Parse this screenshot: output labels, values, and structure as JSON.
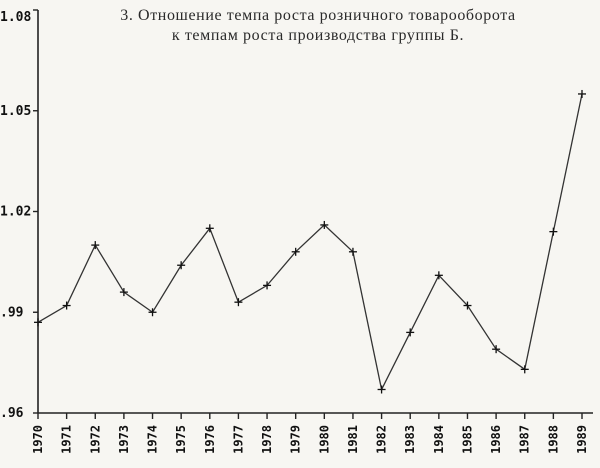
{
  "chart_data": {
    "type": "line",
    "title": "3. Отношение темпа роста розничного товарооборота",
    "subtitle": "к темпам роста производства группы Б.",
    "xlabel": "",
    "ylabel": "",
    "categories": [
      "1970",
      "1971",
      "1972",
      "1973",
      "1974",
      "1975",
      "1976",
      "1977",
      "1978",
      "1979",
      "1980",
      "1981",
      "1982",
      "1983",
      "1984",
      "1985",
      "1986",
      "1987",
      "1988",
      "1989"
    ],
    "series": [
      {
        "values": [
          0.987,
          0.992,
          1.01,
          0.996,
          0.99,
          1.004,
          1.015,
          0.993,
          0.998,
          1.008,
          1.016,
          1.008,
          0.967,
          0.984,
          1.001,
          0.992,
          0.979,
          0.973,
          1.014,
          1.055
        ]
      }
    ],
    "yticks": [
      ".96",
      ".99",
      "1.02",
      "1.05",
      "1.08"
    ],
    "ylim": [
      0.96,
      1.08
    ],
    "grid": false,
    "legend": "none",
    "colors": {
      "line": "#333333",
      "background": "#f7f6f2"
    }
  }
}
